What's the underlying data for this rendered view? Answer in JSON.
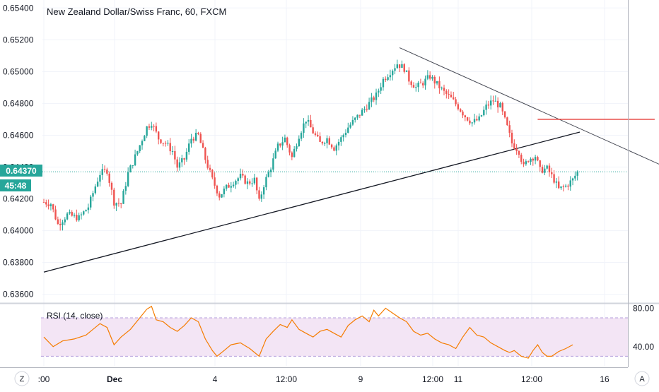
{
  "title": "New Zealand Dollar/Swiss Franc, 60, FXCM",
  "price_axis": {
    "ticks": [
      "0.65400",
      "0.65200",
      "0.65000",
      "0.64800",
      "0.64600",
      "0.64400",
      "0.64200",
      "0.64000",
      "0.63800",
      "0.63600"
    ],
    "last_price": "0.64370",
    "countdown": "45:48"
  },
  "rsi": {
    "label": "RSI (14, close)",
    "ticks": [
      "80.00",
      "40.00"
    ]
  },
  "time_axis": {
    "ticks": [
      ":00",
      "Dec",
      "4",
      "12:00",
      "9",
      "12:00",
      "11",
      "12:00",
      "16"
    ]
  },
  "buttons": {
    "left": "Z",
    "right": "A"
  },
  "colors": {
    "up": "#26a69a",
    "down": "#ef5350",
    "rsi_line": "#f57c00",
    "rsi_band": "#f3e5f5",
    "last_price": "#26a69a",
    "red_line": "#e53935"
  },
  "chart_data": [
    {
      "type": "candlestick",
      "title": "New Zealand Dollar/Swiss Franc, 60, FXCM",
      "ylim": [
        0.6355,
        0.6545
      ],
      "last_price": 0.6437,
      "close_path": [
        [
          0,
          0.6418
        ],
        [
          3,
          0.6417
        ],
        [
          6,
          0.6404
        ],
        [
          10,
          0.641
        ],
        [
          15,
          0.6408
        ],
        [
          19,
          0.6415
        ],
        [
          22,
          0.6428
        ],
        [
          24,
          0.6436
        ],
        [
          27,
          0.6438
        ],
        [
          30,
          0.6418
        ],
        [
          33,
          0.6417
        ],
        [
          36,
          0.6436
        ],
        [
          40,
          0.645
        ],
        [
          44,
          0.6465
        ],
        [
          46,
          0.6468
        ],
        [
          49,
          0.6458
        ],
        [
          52,
          0.6455
        ],
        [
          55,
          0.645
        ],
        [
          57,
          0.644
        ],
        [
          60,
          0.6445
        ],
        [
          63,
          0.6458
        ],
        [
          66,
          0.646
        ],
        [
          69,
          0.6445
        ],
        [
          72,
          0.6432
        ],
        [
          75,
          0.6422
        ],
        [
          78,
          0.6427
        ],
        [
          81,
          0.6431
        ],
        [
          84,
          0.6434
        ],
        [
          87,
          0.643
        ],
        [
          90,
          0.6432
        ],
        [
          92,
          0.6418
        ],
        [
          94,
          0.6429
        ],
        [
          97,
          0.644
        ],
        [
          100,
          0.6453
        ],
        [
          103,
          0.6458
        ],
        [
          106,
          0.6446
        ],
        [
          109,
          0.646
        ],
        [
          112,
          0.647
        ],
        [
          115,
          0.6462
        ],
        [
          118,
          0.6455
        ],
        [
          121,
          0.6458
        ],
        [
          124,
          0.6452
        ],
        [
          127,
          0.6458
        ],
        [
          130,
          0.6465
        ],
        [
          133,
          0.647
        ],
        [
          136,
          0.6475
        ],
        [
          139,
          0.648
        ],
        [
          142,
          0.6485
        ],
        [
          145,
          0.6495
        ],
        [
          148,
          0.65
        ],
        [
          151,
          0.6505
        ],
        [
          154,
          0.6502
        ],
        [
          156,
          0.6495
        ],
        [
          159,
          0.649
        ],
        [
          162,
          0.6493
        ],
        [
          165,
          0.6497
        ],
        [
          168,
          0.6492
        ],
        [
          171,
          0.6487
        ],
        [
          174,
          0.6483
        ],
        [
          177,
          0.6478
        ],
        [
          180,
          0.6472
        ],
        [
          183,
          0.6468
        ],
        [
          186,
          0.647
        ],
        [
          189,
          0.6478
        ],
        [
          192,
          0.6482
        ],
        [
          195,
          0.6478
        ],
        [
          198,
          0.6465
        ],
        [
          200,
          0.6455
        ],
        [
          203,
          0.645
        ],
        [
          205,
          0.644
        ],
        [
          207,
          0.6445
        ],
        [
          210,
          0.6447
        ],
        [
          212,
          0.6438
        ],
        [
          215,
          0.6439
        ],
        [
          218,
          0.6432
        ],
        [
          220,
          0.6426
        ],
        [
          223,
          0.6428
        ],
        [
          226,
          0.6432
        ],
        [
          228,
          0.6437
        ]
      ],
      "drawings": {
        "rising_trendline": {
          "from": [
            0,
            0.6374
          ],
          "to": [
            229,
            0.6462
          ]
        },
        "falling_trendline": {
          "from": [
            152,
            0.6515
          ],
          "to": [
            302,
            0.6416
          ]
        },
        "horizontal_level": {
          "from": [
            211,
            0.647
          ],
          "to": [
            261,
            0.647
          ]
        }
      }
    },
    {
      "type": "line",
      "title": "RSI (14, close)",
      "ylim": [
        20,
        84
      ],
      "band": [
        30,
        70
      ],
      "values": [
        [
          0,
          50
        ],
        [
          4,
          40
        ],
        [
          8,
          46
        ],
        [
          13,
          48
        ],
        [
          18,
          52
        ],
        [
          21,
          58
        ],
        [
          24,
          64
        ],
        [
          27,
          60
        ],
        [
          30,
          42
        ],
        [
          33,
          50
        ],
        [
          37,
          58
        ],
        [
          41,
          70
        ],
        [
          44,
          79
        ],
        [
          46,
          82
        ],
        [
          48,
          68
        ],
        [
          51,
          66
        ],
        [
          54,
          60
        ],
        [
          57,
          56
        ],
        [
          60,
          62
        ],
        [
          63,
          70
        ],
        [
          66,
          66
        ],
        [
          69,
          48
        ],
        [
          72,
          36
        ],
        [
          74,
          30
        ],
        [
          77,
          36
        ],
        [
          80,
          42
        ],
        [
          84,
          44
        ],
        [
          88,
          38
        ],
        [
          92,
          30
        ],
        [
          95,
          48
        ],
        [
          98,
          56
        ],
        [
          101,
          63
        ],
        [
          104,
          60
        ],
        [
          106,
          68
        ],
        [
          109,
          58
        ],
        [
          112,
          54
        ],
        [
          115,
          50
        ],
        [
          118,
          56
        ],
        [
          121,
          58
        ],
        [
          124,
          54
        ],
        [
          127,
          50
        ],
        [
          130,
          62
        ],
        [
          133,
          68
        ],
        [
          136,
          72
        ],
        [
          139,
          66
        ],
        [
          141,
          78
        ],
        [
          143,
          72
        ],
        [
          146,
          80
        ],
        [
          149,
          75
        ],
        [
          152,
          70
        ],
        [
          155,
          66
        ],
        [
          158,
          56
        ],
        [
          161,
          52
        ],
        [
          164,
          54
        ],
        [
          167,
          48
        ],
        [
          170,
          44
        ],
        [
          173,
          42
        ],
        [
          176,
          38
        ],
        [
          179,
          50
        ],
        [
          182,
          60
        ],
        [
          185,
          52
        ],
        [
          188,
          50
        ],
        [
          191,
          44
        ],
        [
          194,
          40
        ],
        [
          197,
          36
        ],
        [
          199,
          34
        ],
        [
          201,
          36
        ],
        [
          204,
          30
        ],
        [
          207,
          28
        ],
        [
          209,
          36
        ],
        [
          211,
          42
        ],
        [
          213,
          34
        ],
        [
          215,
          30
        ],
        [
          217,
          30
        ],
        [
          220,
          35
        ],
        [
          223,
          38
        ],
        [
          226,
          42
        ]
      ]
    }
  ]
}
